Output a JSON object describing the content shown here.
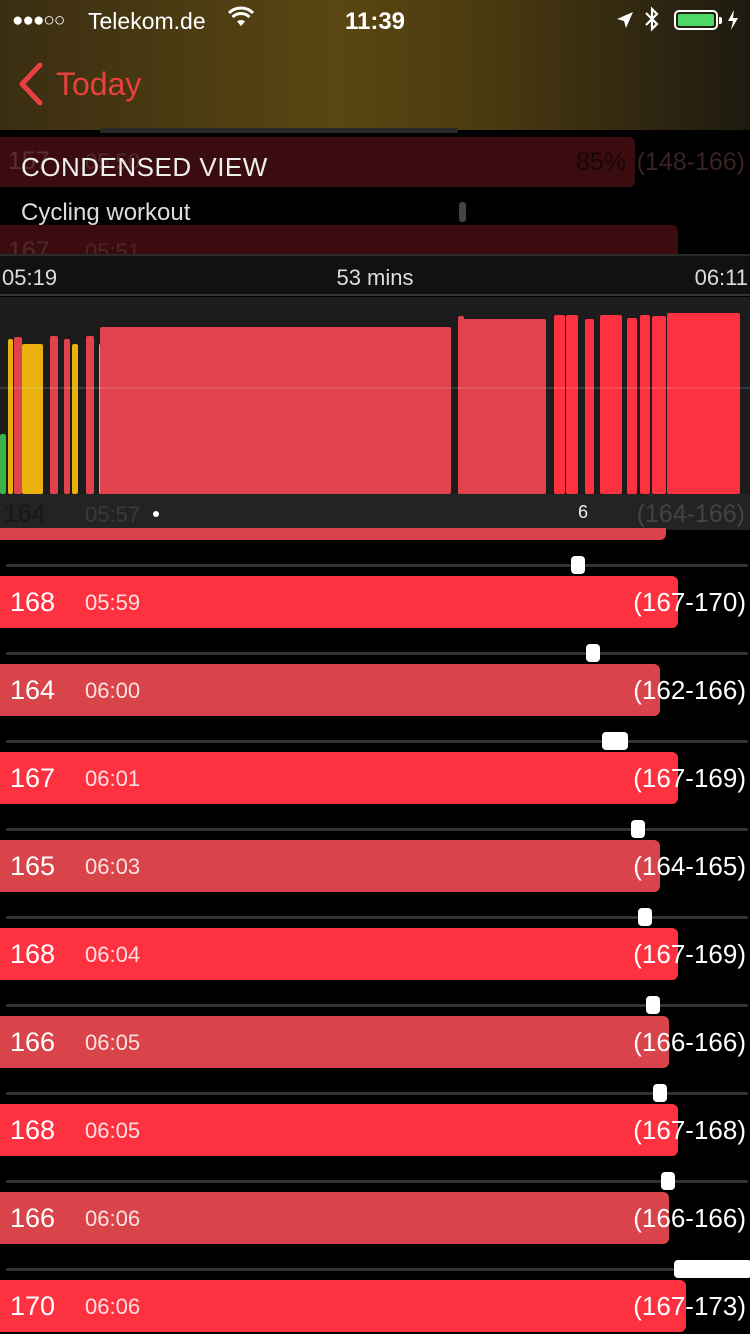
{
  "status_bar": {
    "signal": "●●●○○",
    "carrier": "Telekom.de",
    "time": "11:39",
    "battery_color": "#4cd964"
  },
  "nav": {
    "back_label": "Today",
    "accent_color": "#e8413f"
  },
  "card": {
    "title": "CONDENSED VIEW",
    "subtitle": "Cycling workout",
    "ghost_values": {
      "row1_value": "157",
      "row1_time": "05:50",
      "row1_pct": "85%",
      "row1_range": "(148-166)",
      "row2_value": "167",
      "row2_time": "05:51"
    }
  },
  "timeline": {
    "start": "05:19",
    "duration": "53 mins",
    "end": "06:11",
    "count": "6",
    "under_value": "164",
    "under_time": "05:57",
    "under_range": "(164-166)",
    "colors": {
      "red": "#e0434b",
      "bright_red": "#fe3140",
      "yellow": "#e8b10e",
      "green": "#3bb54a"
    }
  },
  "readings": [
    {
      "value": "168",
      "time": "05:59",
      "range": "(167-170)",
      "style": "bright",
      "level": 0.77,
      "marker_pos": 0.77
    },
    {
      "value": "164",
      "time": "06:00",
      "range": "(162-166)",
      "style": "muted",
      "level": 0.75,
      "marker_pos": 0.79
    },
    {
      "value": "167",
      "time": "06:01",
      "range": "(167-169)",
      "style": "bright",
      "level": 0.77,
      "marker_pos": 0.82
    },
    {
      "value": "165",
      "time": "06:03",
      "range": "(164-165)",
      "style": "muted",
      "level": 0.75,
      "marker_pos": 0.85
    },
    {
      "value": "168",
      "time": "06:04",
      "range": "(167-169)",
      "style": "bright",
      "level": 0.77,
      "marker_pos": 0.86
    },
    {
      "value": "166",
      "time": "06:05",
      "range": "(166-166)",
      "style": "muted",
      "level": 0.76,
      "marker_pos": 0.87
    },
    {
      "value": "168",
      "time": "06:05",
      "range": "(167-168)",
      "style": "bright",
      "level": 0.77,
      "marker_pos": 0.88
    },
    {
      "value": "166",
      "time": "06:06",
      "range": "(166-166)",
      "style": "muted",
      "level": 0.76,
      "marker_pos": 0.89
    },
    {
      "value": "170",
      "time": "06:06",
      "range": "(167-173)",
      "style": "bright",
      "level": 0.78,
      "marker_pos": 0.95
    }
  ]
}
